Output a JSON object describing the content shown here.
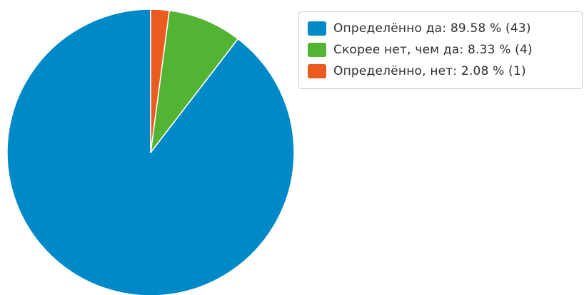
{
  "chart_data": {
    "type": "pie",
    "title": "",
    "legend_position": "top-right",
    "start_angle_deg": 0,
    "direction": "counterclockwise",
    "series": [
      {
        "name": "Определённо да",
        "percent": 89.58,
        "count": 43,
        "color": "#0089c8",
        "legend_label": "Определённо да: 89.58 % (43)"
      },
      {
        "name": "Скорее нет, чем да",
        "percent": 8.33,
        "count": 4,
        "color": "#53b332",
        "legend_label": "Скорее нет, чем да: 8.33 % (4)"
      },
      {
        "name": "Определённо, нет",
        "percent": 2.08,
        "count": 1,
        "color": "#eb5a1f",
        "legend_label": "Определённо, нет: 2.08 % (1)"
      }
    ]
  }
}
